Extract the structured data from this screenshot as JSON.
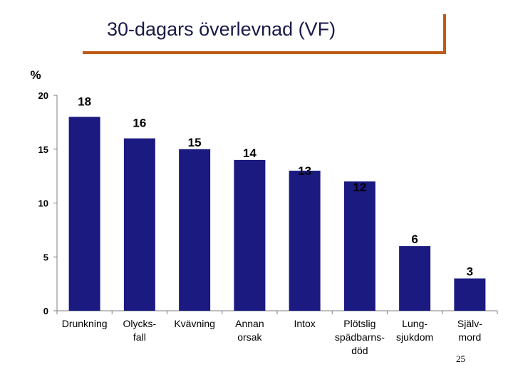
{
  "slide": {
    "title": "30-dagars överlevnad (VF)",
    "page_number": "25"
  },
  "colors": {
    "bar": "#1a1a80",
    "axis": "#7f7f7f",
    "accent": "#c05a16"
  },
  "chart_data": {
    "type": "bar",
    "title": "30-dagars överlevnad (VF)",
    "ylabel": "%",
    "xlabel": "",
    "ylim": [
      0,
      20
    ],
    "yticks": [
      "0",
      "5",
      "10",
      "15",
      "20"
    ],
    "categories": [
      [
        "Drunkning"
      ],
      [
        "Olycks-",
        "fall"
      ],
      [
        "Kvävning"
      ],
      [
        "Annan",
        "orsak"
      ],
      [
        "Intox"
      ],
      [
        "Plötslig",
        "spädbarns-",
        "död"
      ],
      [
        "Lung-",
        "sjukdom"
      ],
      [
        "Själv-",
        "mord"
      ]
    ],
    "values": [
      18,
      16,
      15,
      14,
      13,
      12,
      6,
      3
    ],
    "labels": [
      "18",
      "16",
      "15",
      "14",
      "13",
      "12",
      "6",
      "3"
    ],
    "grid": false
  }
}
